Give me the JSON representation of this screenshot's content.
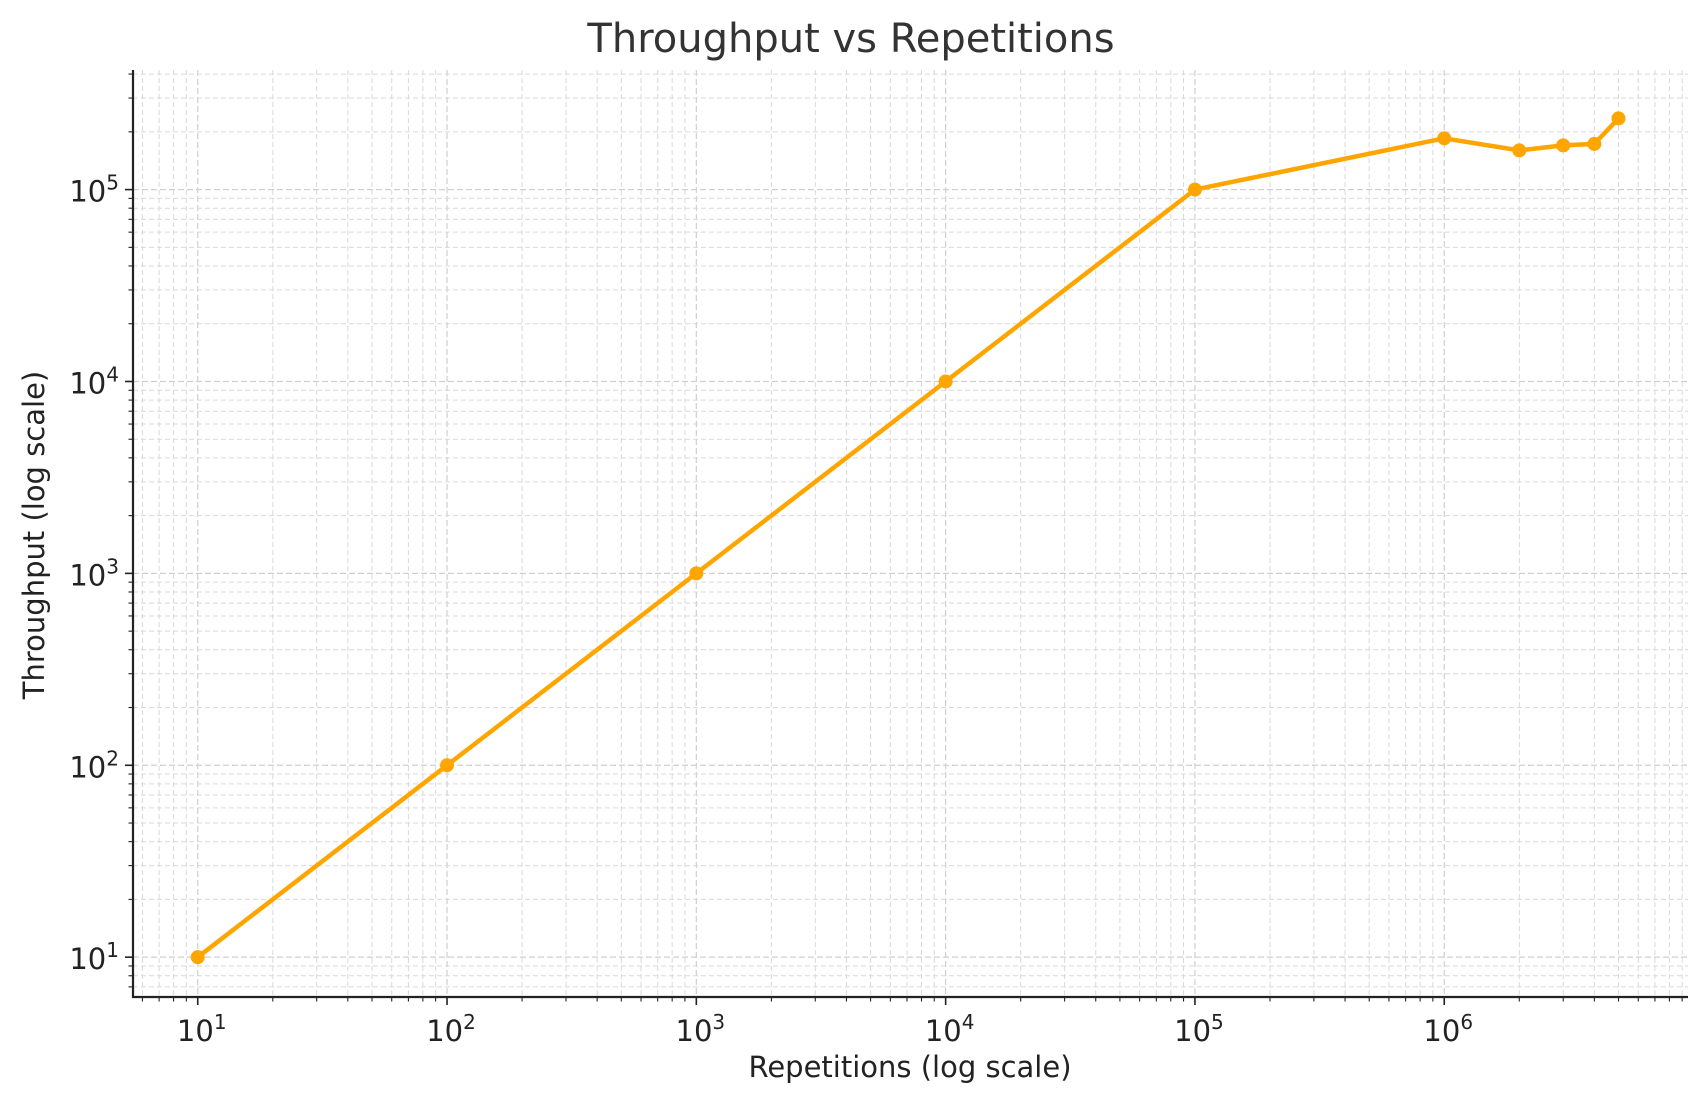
{
  "chart_data": {
    "type": "line",
    "title": "Throughput vs Repetitions",
    "xlabel": "Repetitions (log scale)",
    "ylabel": "Throughput (log scale)",
    "xscale": "log",
    "yscale": "log",
    "xlim": [
      5.5,
      9500000
    ],
    "ylim": [
      6.2,
      420000
    ],
    "grid": true,
    "color": "#FFA500",
    "x_ticks": [
      {
        "value": 10,
        "base": "10",
        "exp": "1"
      },
      {
        "value": 100,
        "base": "10",
        "exp": "2"
      },
      {
        "value": 1000,
        "base": "10",
        "exp": "3"
      },
      {
        "value": 10000,
        "base": "10",
        "exp": "4"
      },
      {
        "value": 100000,
        "base": "10",
        "exp": "5"
      },
      {
        "value": 1000000,
        "base": "10",
        "exp": "6"
      }
    ],
    "y_ticks": [
      {
        "value": 10,
        "base": "10",
        "exp": "1"
      },
      {
        "value": 100,
        "base": "10",
        "exp": "2"
      },
      {
        "value": 1000,
        "base": "10",
        "exp": "3"
      },
      {
        "value": 10000,
        "base": "10",
        "exp": "4"
      },
      {
        "value": 100000,
        "base": "10",
        "exp": "5"
      }
    ],
    "series": [
      {
        "name": "Throughput",
        "x": [
          10,
          100,
          1000,
          10000,
          100000,
          1000000,
          2000000,
          3000000,
          4000000,
          5000000
        ],
        "y": [
          10,
          100,
          1000,
          10000,
          100000,
          185000,
          160000,
          170000,
          173000,
          235000
        ]
      }
    ]
  }
}
